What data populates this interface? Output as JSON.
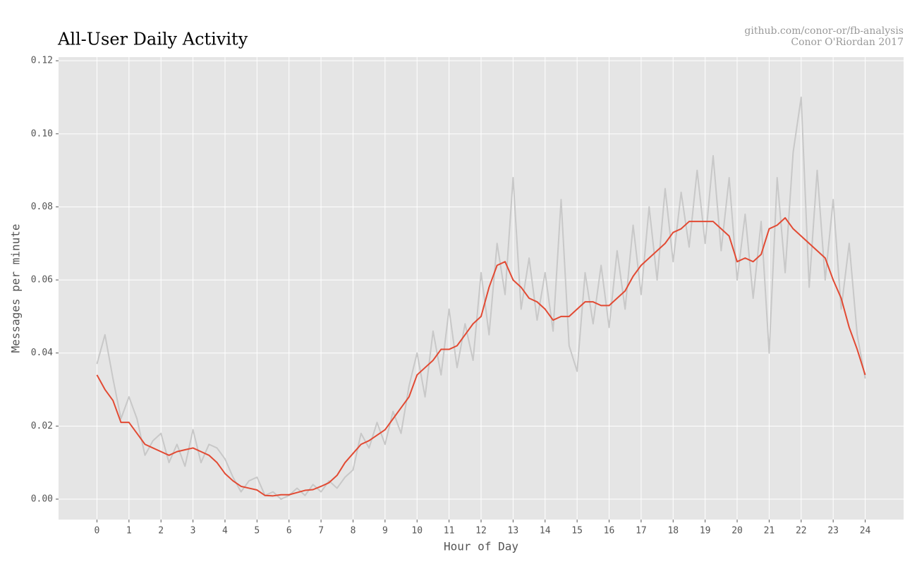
{
  "chart_data": {
    "type": "line",
    "title": "All-User Daily Activity",
    "source_lines": [
      "github.com/conor-or/fb-analysis",
      "Conor O'Riordan 2017"
    ],
    "xlabel": "Hour of Day",
    "ylabel": "Messages per minute",
    "x": [
      0,
      0.25,
      0.5,
      0.75,
      1,
      1.25,
      1.5,
      1.75,
      2,
      2.25,
      2.5,
      2.75,
      3,
      3.25,
      3.5,
      3.75,
      4,
      4.25,
      4.5,
      4.75,
      5,
      5.25,
      5.5,
      5.75,
      6,
      6.25,
      6.5,
      6.75,
      7,
      7.25,
      7.5,
      7.75,
      8,
      8.25,
      8.5,
      8.75,
      9,
      9.25,
      9.5,
      9.75,
      10,
      10.25,
      10.5,
      10.75,
      11,
      11.25,
      11.5,
      11.75,
      12,
      12.25,
      12.5,
      12.75,
      13,
      13.25,
      13.5,
      13.75,
      14,
      14.25,
      14.5,
      14.75,
      15,
      15.25,
      15.5,
      15.75,
      16,
      16.25,
      16.5,
      16.75,
      17,
      17.25,
      17.5,
      17.75,
      18,
      18.25,
      18.5,
      18.75,
      19,
      19.25,
      19.5,
      19.75,
      20,
      20.25,
      20.5,
      20.75,
      21,
      21.25,
      21.5,
      21.75,
      22,
      22.25,
      22.5,
      22.75,
      23,
      23.25,
      23.5,
      23.75,
      24
    ],
    "series": [
      {
        "color": "#c8c8c8",
        "values": [
          0.037,
          0.045,
          0.033,
          0.022,
          0.028,
          0.022,
          0.012,
          0.016,
          0.018,
          0.01,
          0.015,
          0.009,
          0.019,
          0.01,
          0.015,
          0.014,
          0.011,
          0.006,
          0.002,
          0.005,
          0.006,
          0.001,
          0.002,
          0.0,
          0.001,
          0.003,
          0.001,
          0.004,
          0.002,
          0.005,
          0.003,
          0.006,
          0.008,
          0.018,
          0.014,
          0.021,
          0.015,
          0.024,
          0.018,
          0.031,
          0.04,
          0.028,
          0.046,
          0.034,
          0.052,
          0.036,
          0.048,
          0.038,
          0.062,
          0.045,
          0.07,
          0.056,
          0.088,
          0.052,
          0.066,
          0.049,
          0.062,
          0.046,
          0.082,
          0.042,
          0.035,
          0.062,
          0.048,
          0.064,
          0.047,
          0.068,
          0.052,
          0.075,
          0.056,
          0.08,
          0.06,
          0.085,
          0.065,
          0.084,
          0.069,
          0.09,
          0.07,
          0.094,
          0.068,
          0.088,
          0.06,
          0.078,
          0.055,
          0.076,
          0.04,
          0.088,
          0.062,
          0.095,
          0.11,
          0.058,
          0.09,
          0.06,
          0.082,
          0.052,
          0.07,
          0.045,
          0.033
        ]
      },
      {
        "color": "#e24a33",
        "values": [
          0.034,
          0.03,
          0.027,
          0.021,
          0.021,
          0.018,
          0.015,
          0.014,
          0.013,
          0.012,
          0.013,
          0.0135,
          0.014,
          0.013,
          0.012,
          0.01,
          0.007,
          0.005,
          0.0035,
          0.003,
          0.0025,
          0.001,
          0.0009,
          0.0012,
          0.0012,
          0.0018,
          0.0024,
          0.0026,
          0.0035,
          0.0045,
          0.0065,
          0.01,
          0.0125,
          0.015,
          0.016,
          0.0175,
          0.019,
          0.022,
          0.025,
          0.028,
          0.034,
          0.036,
          0.038,
          0.041,
          0.041,
          0.042,
          0.045,
          0.048,
          0.05,
          0.058,
          0.064,
          0.065,
          0.06,
          0.058,
          0.055,
          0.054,
          0.052,
          0.049,
          0.05,
          0.05,
          0.052,
          0.054,
          0.054,
          0.053,
          0.053,
          0.055,
          0.057,
          0.061,
          0.064,
          0.066,
          0.068,
          0.07,
          0.073,
          0.074,
          0.076,
          0.076,
          0.076,
          0.076,
          0.074,
          0.072,
          0.065,
          0.066,
          0.065,
          0.067,
          0.074,
          0.075,
          0.077,
          0.074,
          0.072,
          0.07,
          0.068,
          0.066,
          0.06,
          0.055,
          0.047,
          0.041,
          0.034
        ]
      }
    ],
    "xlim": [
      -1.2,
      25.2
    ],
    "ylim": [
      -0.0056,
      0.121
    ],
    "xticks": [
      0,
      1,
      2,
      3,
      4,
      5,
      6,
      7,
      8,
      9,
      10,
      11,
      12,
      13,
      14,
      15,
      16,
      17,
      18,
      19,
      20,
      21,
      22,
      23,
      24
    ],
    "yticks": [
      {
        "value": 0,
        "label": "0.00"
      },
      {
        "value": 0.02,
        "label": "0.02"
      },
      {
        "value": 0.04,
        "label": "0.04"
      },
      {
        "value": 0.06,
        "label": "0.06"
      },
      {
        "value": 0.08,
        "label": "0.08"
      },
      {
        "value": 0.1,
        "label": "0.10"
      },
      {
        "value": 0.12,
        "label": "0.12"
      }
    ],
    "grid": true,
    "background": "#e5e5e5"
  }
}
